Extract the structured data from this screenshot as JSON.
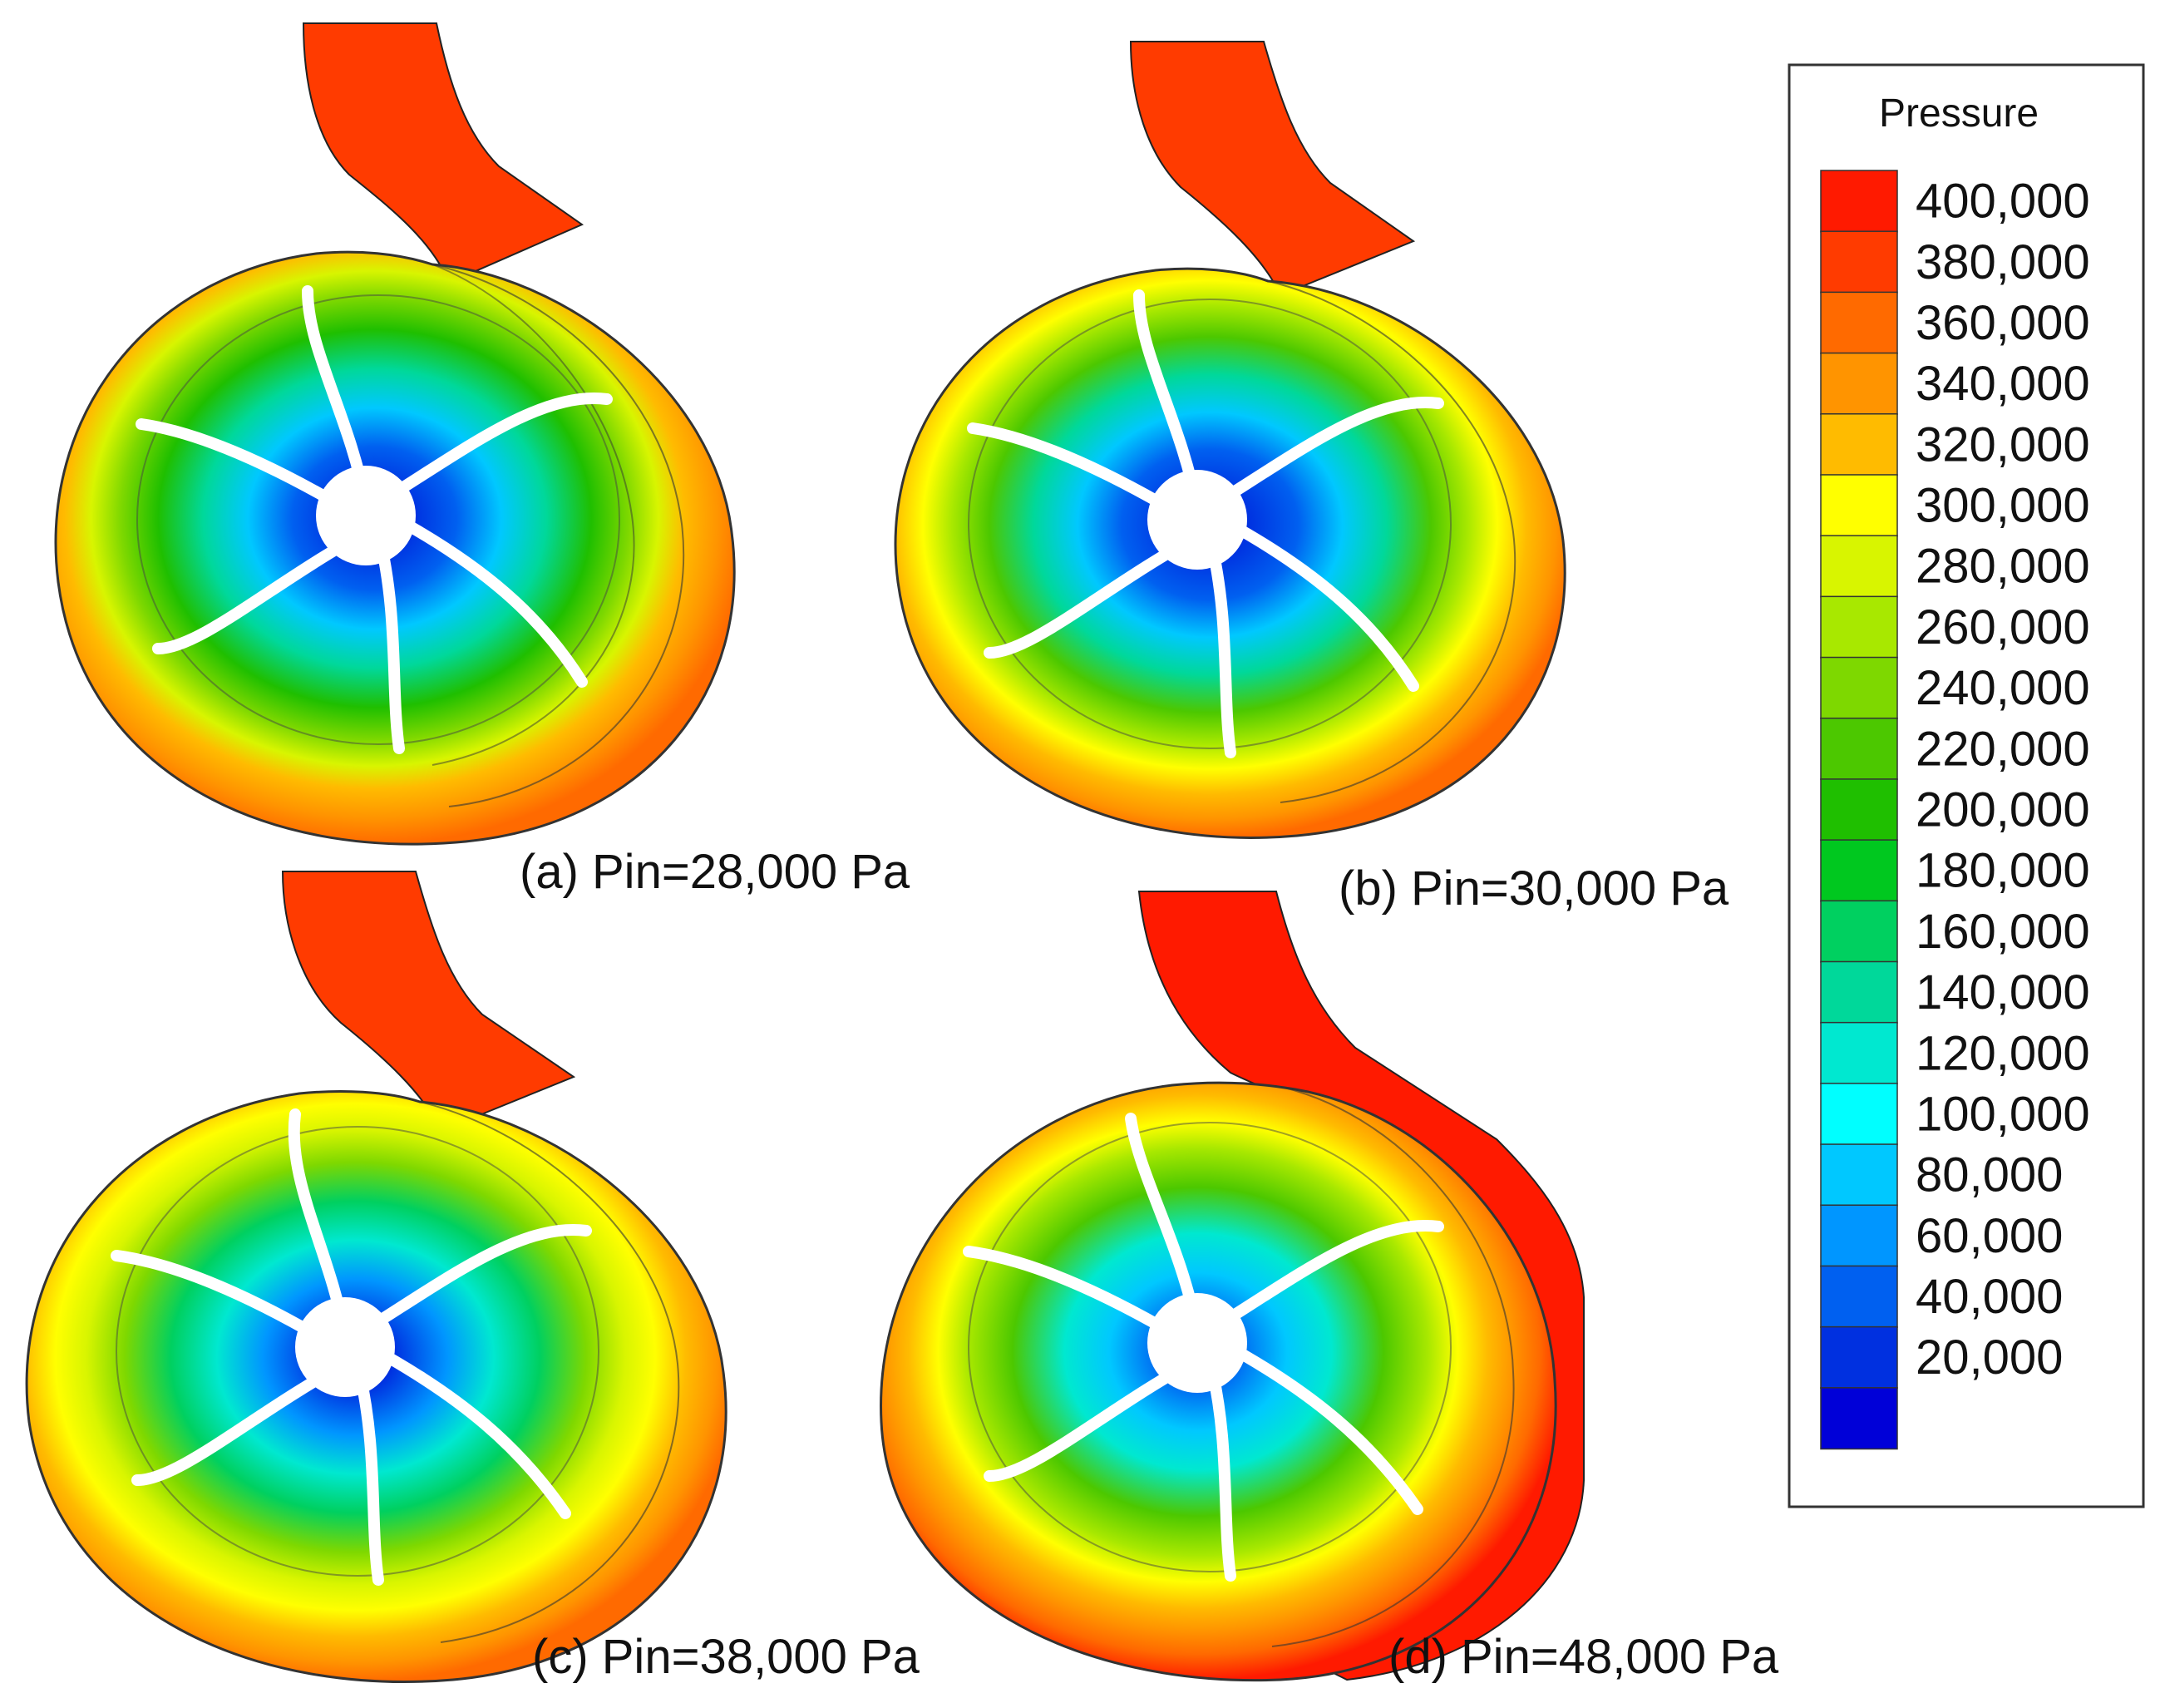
{
  "figure": {
    "panels": [
      {
        "id": "a",
        "caption": "(a) Pin=28,000 Pa",
        "inlet_pressure_pa": 28000
      },
      {
        "id": "b",
        "caption": "(b) Pin=30,000 Pa",
        "inlet_pressure_pa": 30000
      },
      {
        "id": "c",
        "caption": "(c) Pin=38,000 Pa",
        "inlet_pressure_pa": 38000
      },
      {
        "id": "d",
        "caption": "(d) Pin=48,000 Pa",
        "inlet_pressure_pa": 48000
      }
    ],
    "legend": {
      "title": "Pressure",
      "ticks": [
        "400,000",
        "380,000",
        "360,000",
        "340,000",
        "320,000",
        "300,000",
        "280,000",
        "260,000",
        "240,000",
        "220,000",
        "200,000",
        "180,000",
        "160,000",
        "140,000",
        "120,000",
        "100,000",
        "80,000",
        "60,000",
        "40,000",
        "20,000"
      ],
      "colors": [
        "#ff1a00",
        "#ff3b00",
        "#ff6a00",
        "#ff9400",
        "#ffbb00",
        "#ffff00",
        "#d8f500",
        "#a8e800",
        "#7ed800",
        "#4cc800",
        "#1fbf00",
        "#00c81f",
        "#00d060",
        "#00d89a",
        "#00e8d0",
        "#00ffff",
        "#00c8ff",
        "#0096ff",
        "#0060f0",
        "#0030e0",
        "#0000d8"
      ]
    }
  }
}
